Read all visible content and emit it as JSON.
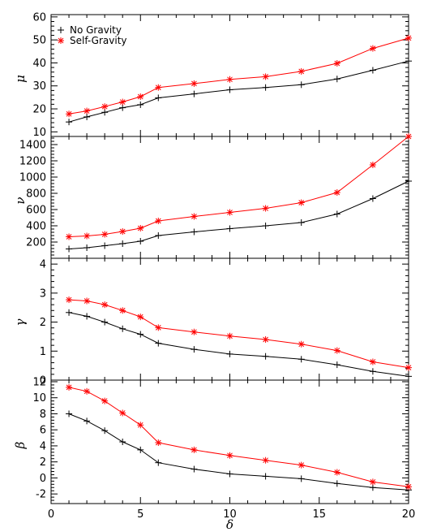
{
  "chart_data": [
    {
      "type": "line",
      "ylabel": "μ",
      "ylim": [
        8,
        61
      ],
      "yticks": [
        10,
        20,
        30,
        40,
        50,
        60
      ],
      "x": [
        1,
        2,
        3,
        4,
        5,
        6,
        8,
        10,
        12,
        14,
        16,
        18,
        20
      ],
      "series": [
        {
          "name": "No Gravity",
          "color": "#000000",
          "marker": "plus",
          "values": [
            14.3,
            16.5,
            18.5,
            20.5,
            21.8,
            24.8,
            26.5,
            28.3,
            29.3,
            30.5,
            33.0,
            36.8,
            40.8
          ]
        },
        {
          "name": "Self-Gravity",
          "color": "#ff0000",
          "marker": "asterisk",
          "values": [
            17.8,
            19.1,
            21.0,
            23.0,
            25.3,
            29.3,
            31.0,
            32.8,
            34.0,
            36.3,
            39.8,
            46.3,
            50.8
          ]
        }
      ],
      "legend": "top-left"
    },
    {
      "type": "line",
      "ylabel": "ν",
      "ylim": [
        0,
        1500
      ],
      "yticks": [
        200,
        400,
        600,
        800,
        1000,
        1200,
        1400
      ],
      "x": [
        1,
        2,
        3,
        4,
        5,
        6,
        8,
        10,
        12,
        14,
        16,
        18,
        20
      ],
      "series": [
        {
          "name": "No Gravity",
          "color": "#000000",
          "marker": "plus",
          "values": [
            115,
            130,
            155,
            180,
            210,
            280,
            325,
            365,
            400,
            440,
            545,
            735,
            950
          ]
        },
        {
          "name": "Self-Gravity",
          "color": "#ff0000",
          "marker": "asterisk",
          "values": [
            265,
            275,
            295,
            330,
            370,
            460,
            515,
            565,
            615,
            685,
            810,
            1150,
            1500
          ]
        }
      ]
    },
    {
      "type": "line",
      "ylabel": "γ",
      "ylim": [
        0,
        4.2
      ],
      "yticks": [
        0,
        1,
        2,
        3,
        4
      ],
      "x": [
        1,
        2,
        3,
        4,
        5,
        6,
        8,
        10,
        12,
        14,
        16,
        18,
        20
      ],
      "series": [
        {
          "name": "No Gravity",
          "color": "#000000",
          "marker": "plus",
          "values": [
            2.33,
            2.2,
            2.0,
            1.77,
            1.58,
            1.27,
            1.06,
            0.9,
            0.82,
            0.72,
            0.53,
            0.3,
            0.13
          ]
        },
        {
          "name": "Self-Gravity",
          "color": "#ff0000",
          "marker": "asterisk",
          "values": [
            2.77,
            2.73,
            2.6,
            2.4,
            2.18,
            1.81,
            1.66,
            1.52,
            1.4,
            1.24,
            1.02,
            0.63,
            0.43
          ]
        }
      ]
    },
    {
      "type": "line",
      "ylabel": "β",
      "xlabel": "δ",
      "ylim": [
        -3.2,
        12.2
      ],
      "xlim": [
        0,
        20
      ],
      "yticks": [
        -2,
        0,
        2,
        4,
        6,
        8,
        10,
        12
      ],
      "xticks": [
        0,
        5,
        10,
        15,
        20
      ],
      "x": [
        1,
        2,
        3,
        4,
        5,
        6,
        8,
        10,
        12,
        14,
        16,
        18,
        20
      ],
      "series": [
        {
          "name": "No Gravity",
          "color": "#000000",
          "marker": "plus",
          "values": [
            8.0,
            7.1,
            5.9,
            4.5,
            3.5,
            1.9,
            1.1,
            0.5,
            0.2,
            -0.1,
            -0.7,
            -1.2,
            -1.5
          ]
        },
        {
          "name": "Self-Gravity",
          "color": "#ff0000",
          "marker": "asterisk",
          "values": [
            11.3,
            10.8,
            9.6,
            8.1,
            6.6,
            4.4,
            3.5,
            2.8,
            2.2,
            1.6,
            0.7,
            -0.5,
            -1.1
          ]
        }
      ]
    }
  ],
  "legend": {
    "entries": [
      {
        "label": "No Gravity",
        "color": "#000000",
        "marker": "plus"
      },
      {
        "label": "Self-Gravity",
        "color": "#ff0000",
        "marker": "asterisk"
      }
    ]
  }
}
